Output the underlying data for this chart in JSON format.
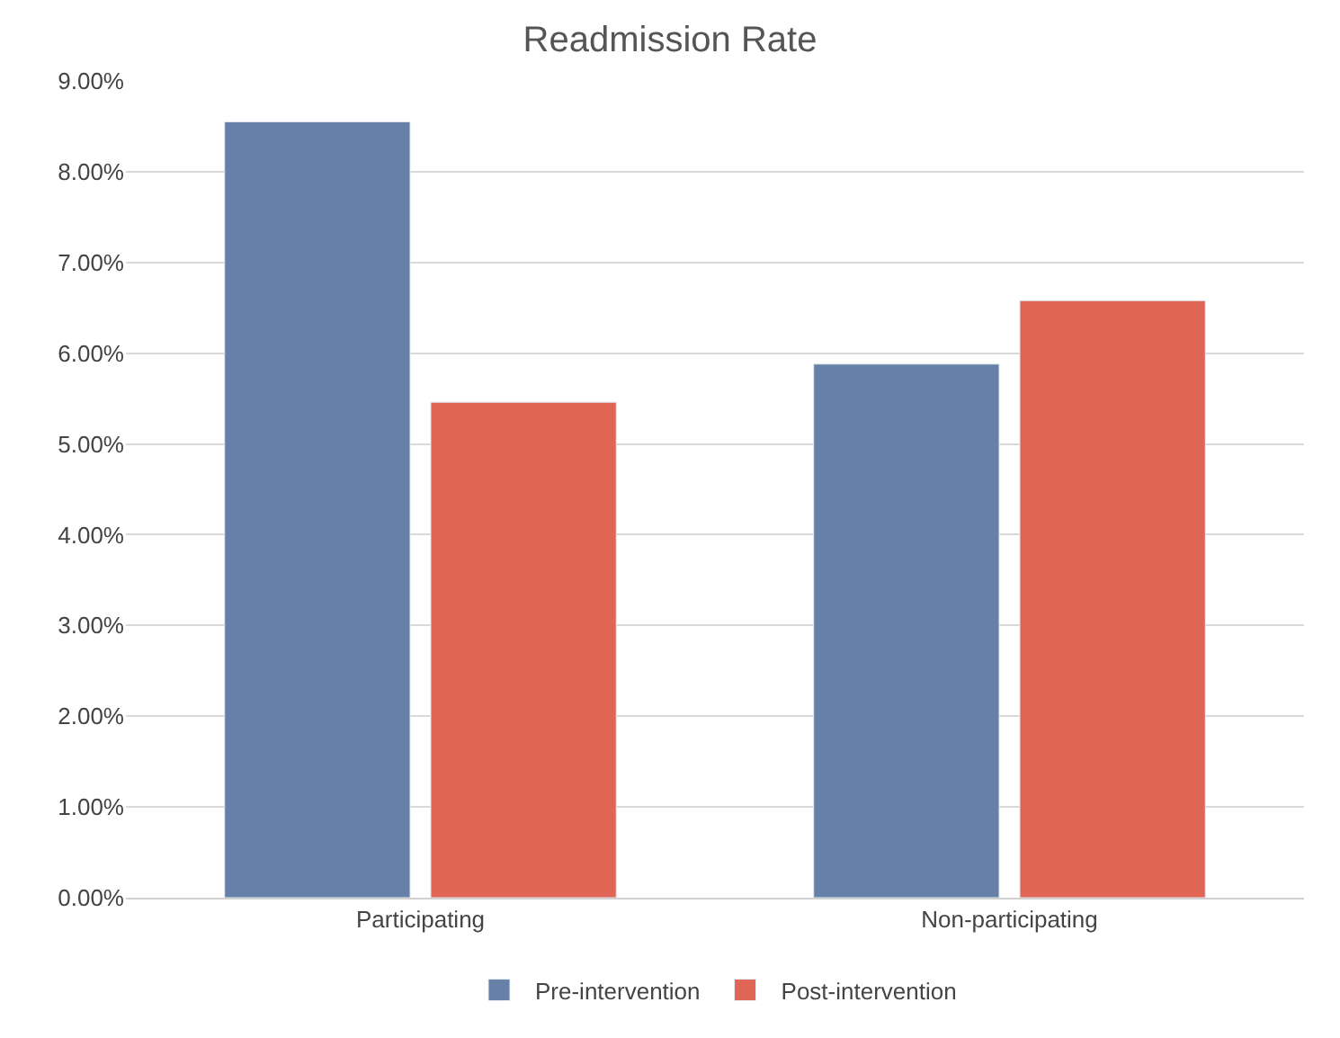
{
  "chart_data": {
    "type": "bar",
    "title": "Readmission Rate",
    "categories": [
      "Participating",
      "Non-participating"
    ],
    "series": [
      {
        "name": "Pre-intervention",
        "color": "#6680a8",
        "values": [
          8.55,
          5.88
        ]
      },
      {
        "name": "Post-intervention",
        "color": "#e06555",
        "values": [
          5.46,
          6.58
        ]
      }
    ],
    "ylim": [
      0,
      9
    ],
    "yticks": [
      {
        "value": 0,
        "label": "0.00%"
      },
      {
        "value": 1,
        "label": "1.00%"
      },
      {
        "value": 2,
        "label": "2.00%"
      },
      {
        "value": 3,
        "label": "3.00%"
      },
      {
        "value": 4,
        "label": "4.00%"
      },
      {
        "value": 5,
        "label": "5.00%"
      },
      {
        "value": 6,
        "label": "6.00%"
      },
      {
        "value": 7,
        "label": "7.00%"
      },
      {
        "value": 8,
        "label": "8.00%"
      },
      {
        "value": 9,
        "label": "9.00%"
      }
    ],
    "grid": "y",
    "legend": "bottom"
  }
}
